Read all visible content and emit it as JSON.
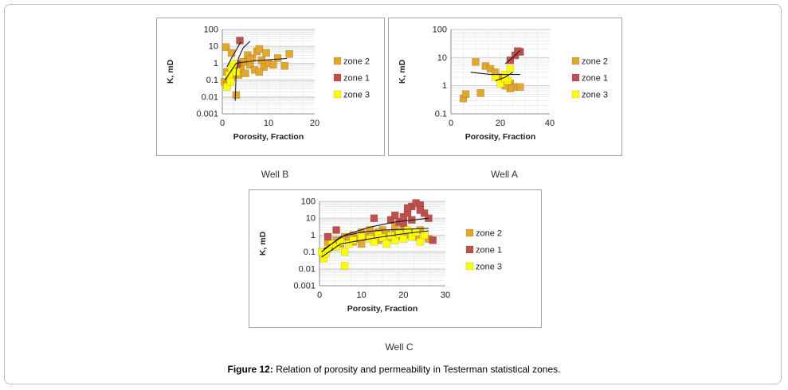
{
  "caption": {
    "label": "Figure 12:",
    "text": " Relation of porosity and permeability in Testerman statistical zones."
  },
  "colors": {
    "zone2": "#e3a72c",
    "zone1": "#c0504d",
    "zone3": "#ffff00",
    "trend": "#1a1a1a",
    "grid": "#c8c8c8"
  },
  "chart_data": [
    {
      "type": "scatter",
      "name": "Well B",
      "xlabel": "Porosity, Fraction",
      "ylabel": "K, mD",
      "xlim": [
        0,
        20
      ],
      "ylim": [
        0.001,
        100
      ],
      "yscale": "log",
      "xticks": [
        "0",
        "10",
        "20"
      ],
      "yticks": [
        "100",
        "10",
        "1",
        "0.1",
        "0.01",
        "0.001"
      ],
      "legend": [
        "zone 2",
        "zone 1",
        "zone 3"
      ],
      "series": [
        {
          "name": "zone 2",
          "points": [
            [
              0.5,
              0.08
            ],
            [
              1,
              0.05
            ],
            [
              1.5,
              0.1
            ],
            [
              0.8,
              9
            ],
            [
              2,
              4
            ],
            [
              2.5,
              0.3
            ],
            [
              3,
              0.6
            ],
            [
              3.5,
              0.2
            ],
            [
              4,
              0.5
            ],
            [
              4.5,
              1.2
            ],
            [
              5,
              0.25
            ],
            [
              5.5,
              3
            ],
            [
              6,
              0.8
            ],
            [
              6.5,
              2
            ],
            [
              7,
              0.4
            ],
            [
              7.5,
              5
            ],
            [
              8,
              7
            ],
            [
              8.5,
              1.5
            ],
            [
              9,
              0.6
            ],
            [
              9.5,
              4
            ],
            [
              10,
              1
            ],
            [
              11,
              0.8
            ],
            [
              12,
              2
            ],
            [
              13.5,
              0.7
            ],
            [
              14.5,
              3.5
            ],
            [
              3,
              0.013
            ],
            [
              2,
              0.15
            ],
            [
              1,
              0.3
            ],
            [
              6,
              1.6
            ],
            [
              8,
              0.3
            ]
          ]
        },
        {
          "name": "zone 1",
          "points": [
            [
              3.8,
              22
            ],
            [
              3.2,
              0.9
            ]
          ]
        },
        {
          "name": "zone 3",
          "points": [
            [
              1,
              0.04
            ],
            [
              1.5,
              0.2
            ],
            [
              2,
              0.5
            ],
            [
              2.5,
              0.9
            ],
            [
              3,
              0.3
            ],
            [
              1.8,
              0.08
            ]
          ]
        }
      ],
      "trends": [
        {
          "name": "zone 2",
          "points": [
            [
              0.6,
              0.1
            ],
            [
              3,
              1
            ],
            [
              6,
              1.3
            ],
            [
              10,
              1.6
            ],
            [
              14,
              1.9
            ]
          ]
        },
        {
          "name": "zone 1",
          "points": [
            [
              1,
              0.6
            ],
            [
              2,
              2
            ],
            [
              3,
              6
            ],
            [
              4,
              18
            ]
          ]
        },
        {
          "name": "zone 3",
          "points": [
            [
              2.8,
              0.006
            ],
            [
              3,
              0.3
            ],
            [
              3.5,
              2
            ],
            [
              4.5,
              8
            ],
            [
              6,
              20
            ]
          ]
        }
      ]
    },
    {
      "type": "scatter",
      "name": "Well A",
      "xlabel": "Porosity, Fraction",
      "ylabel": "K, mD",
      "xlim": [
        0,
        40
      ],
      "ylim": [
        0.1,
        100
      ],
      "yscale": "log",
      "xticks": [
        "0",
        "20",
        "40"
      ],
      "yticks": [
        "100",
        "10",
        "1",
        "0.1"
      ],
      "legend": [
        "zone 2",
        "zone 1",
        "zone 3"
      ],
      "series": [
        {
          "name": "zone 2",
          "points": [
            [
              5,
              0.35
            ],
            [
              6,
              0.5
            ],
            [
              12,
              0.55
            ],
            [
              10,
              7
            ],
            [
              14,
              5
            ],
            [
              16,
              4
            ],
            [
              18,
              3
            ],
            [
              20,
              2
            ],
            [
              22,
              1.5
            ],
            [
              24,
              1.2
            ],
            [
              26,
              0.9
            ],
            [
              28,
              0.9
            ],
            [
              24,
              0.8
            ],
            [
              22,
              1
            ]
          ]
        },
        {
          "name": "zone 1",
          "points": [
            [
              24,
              8
            ],
            [
              26,
              12
            ],
            [
              28,
              16
            ],
            [
              27,
              17
            ]
          ]
        },
        {
          "name": "zone 3",
          "points": [
            [
              18,
              2
            ],
            [
              20,
              1.2
            ],
            [
              22,
              2.5
            ],
            [
              23,
              1.5
            ],
            [
              24,
              4
            ],
            [
              22,
              1.8
            ]
          ]
        }
      ],
      "trends": [
        {
          "name": "zone 2",
          "points": [
            [
              8,
              3
            ],
            [
              16,
              2.5
            ],
            [
              28,
              2.5
            ]
          ]
        },
        {
          "name": "zone 1",
          "points": [
            [
              22,
              6
            ],
            [
              25,
              10
            ],
            [
              28,
              18
            ]
          ]
        },
        {
          "name": "zone 3",
          "points": [
            [
              18,
              1.5
            ],
            [
              22,
              2
            ],
            [
              25,
              3
            ]
          ]
        }
      ]
    },
    {
      "type": "scatter",
      "name": "Well C",
      "xlabel": "Porosity, Fraction",
      "ylabel": "K, mD",
      "xlim": [
        0,
        30
      ],
      "ylim": [
        0.001,
        100
      ],
      "yscale": "log",
      "xticks": [
        "0",
        "10",
        "20",
        "30"
      ],
      "yticks": [
        "100",
        "10",
        "1",
        "0.1",
        "0.01",
        "0.001"
      ],
      "legend": [
        "zone 2",
        "zone 1",
        "zone 3"
      ],
      "series": [
        {
          "name": "zone 2",
          "points": [
            [
              1,
              0.1
            ],
            [
              2,
              0.3
            ],
            [
              3,
              0.2
            ],
            [
              4,
              0.5
            ],
            [
              5,
              0.3
            ],
            [
              6,
              0.8
            ],
            [
              7,
              0.5
            ],
            [
              8,
              1
            ],
            [
              9,
              0.6
            ],
            [
              10,
              1.5
            ],
            [
              11,
              0.8
            ],
            [
              12,
              2
            ],
            [
              13,
              1
            ],
            [
              14,
              0.5
            ],
            [
              15,
              2
            ],
            [
              16,
              1.2
            ],
            [
              17,
              0.7
            ],
            [
              18,
              1.5
            ],
            [
              19,
              0.9
            ],
            [
              20,
              2.5
            ],
            [
              21,
              1
            ],
            [
              22,
              1.5
            ],
            [
              23,
              0.8
            ],
            [
              24,
              2
            ],
            [
              25,
              1
            ],
            [
              26,
              0.6
            ],
            [
              10,
              0.3
            ],
            [
              14,
              1.5
            ],
            [
              18,
              3
            ],
            [
              8,
              0.4
            ]
          ]
        },
        {
          "name": "zone 1",
          "points": [
            [
              2,
              0.8
            ],
            [
              4,
              2
            ],
            [
              13,
              10
            ],
            [
              17,
              8
            ],
            [
              18,
              15
            ],
            [
              19,
              6
            ],
            [
              20,
              12
            ],
            [
              21,
              20
            ],
            [
              22,
              50
            ],
            [
              23,
              80
            ],
            [
              24,
              60
            ],
            [
              25,
              20
            ],
            [
              26,
              10
            ],
            [
              27,
              0.5
            ],
            [
              20,
              5
            ],
            [
              22,
              8
            ],
            [
              24,
              30
            ],
            [
              21,
              40
            ]
          ]
        },
        {
          "name": "zone 3",
          "points": [
            [
              0.5,
              0.1
            ],
            [
              1,
              0.04
            ],
            [
              1.5,
              0.08
            ],
            [
              2,
              0.15
            ],
            [
              3,
              0.3
            ],
            [
              4,
              0.2
            ],
            [
              5,
              0.4
            ],
            [
              6,
              0.015
            ],
            [
              6,
              0.1
            ],
            [
              7,
              0.3
            ],
            [
              8,
              0.5
            ],
            [
              10,
              0.8
            ],
            [
              12,
              0.6
            ],
            [
              13,
              0.4
            ],
            [
              14,
              1
            ],
            [
              15,
              0.7
            ],
            [
              16,
              0.3
            ],
            [
              17,
              0.9
            ],
            [
              18,
              0.5
            ],
            [
              19,
              1.2
            ],
            [
              20,
              0.6
            ],
            [
              21,
              2
            ],
            [
              22,
              0.8
            ],
            [
              23,
              1.5
            ],
            [
              24,
              0.4
            ],
            [
              25,
              1
            ]
          ]
        }
      ],
      "trends": [
        {
          "name": "zone 2",
          "points": [
            [
              0.5,
              0.1
            ],
            [
              5,
              0.8
            ],
            [
              10,
              1.5
            ],
            [
              15,
              2
            ],
            [
              20,
              2.2
            ],
            [
              26,
              2.5
            ]
          ]
        },
        {
          "name": "zone 1",
          "points": [
            [
              1,
              0.15
            ],
            [
              6,
              1
            ],
            [
              12,
              3
            ],
            [
              18,
              6
            ],
            [
              26,
              10
            ]
          ]
        },
        {
          "name": "zone 3",
          "points": [
            [
              0.5,
              0.05
            ],
            [
              5,
              0.3
            ],
            [
              10,
              0.5
            ],
            [
              15,
              0.8
            ],
            [
              20,
              1.2
            ],
            [
              26,
              1.8
            ]
          ]
        }
      ]
    }
  ],
  "panels": {
    "wellB_label": "Well B",
    "wellA_label": "Well A",
    "wellC_label": "Well C"
  }
}
